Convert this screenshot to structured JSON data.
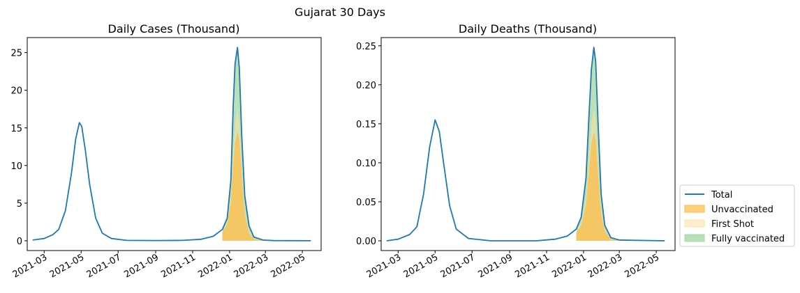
{
  "figure_title": "Gujarat 30 Days",
  "legend": {
    "placement": "outside-right-bottom",
    "entries": [
      {
        "label": "Total",
        "color": "#1f77b4",
        "kind": "line"
      },
      {
        "label": "Unvaccinated",
        "color": "#ffbb44",
        "kind": "area"
      },
      {
        "label": "First Shot",
        "color": "#fde0a6",
        "kind": "area"
      },
      {
        "label": "Fully vaccinated",
        "color": "#a8d8a8",
        "kind": "area"
      }
    ]
  },
  "chart_data": [
    {
      "type": "area",
      "title": "Daily Cases (Thousand)",
      "xlabel": "",
      "ylabel": "",
      "x_type": "date",
      "xlim": [
        "2021-02-01",
        "2022-06-01"
      ],
      "ylim": [
        -1.3,
        27
      ],
      "x_ticks": [
        "2021-03-01",
        "2021-05-01",
        "2021-07-01",
        "2021-09-01",
        "2021-11-01",
        "2022-01-01",
        "2022-03-01",
        "2022-05-01"
      ],
      "x_tick_labels": [
        "2021-03",
        "2021-05",
        "2021-07",
        "2021-09",
        "2021-11",
        "2022-01",
        "2022-03",
        "2022-05"
      ],
      "y_ticks": [
        0,
        5,
        10,
        15,
        20,
        25
      ],
      "y_tick_labels": [
        "0",
        "5",
        "10",
        "15",
        "20",
        "25"
      ],
      "grid": false,
      "series": [
        {
          "name": "Total",
          "kind": "line",
          "color": "#1f77b4",
          "points": [
            [
              "2021-02-10",
              0.1
            ],
            [
              "2021-03-01",
              0.3
            ],
            [
              "2021-03-15",
              0.8
            ],
            [
              "2021-03-25",
              1.5
            ],
            [
              "2021-04-05",
              4.0
            ],
            [
              "2021-04-15",
              9.0
            ],
            [
              "2021-04-22",
              13.5
            ],
            [
              "2021-04-28",
              15.7
            ],
            [
              "2021-05-02",
              15.2
            ],
            [
              "2021-05-08",
              12.0
            ],
            [
              "2021-05-15",
              7.5
            ],
            [
              "2021-05-25",
              3.0
            ],
            [
              "2021-06-05",
              1.0
            ],
            [
              "2021-06-20",
              0.3
            ],
            [
              "2021-07-15",
              0.05
            ],
            [
              "2021-09-01",
              0.03
            ],
            [
              "2021-10-15",
              0.05
            ],
            [
              "2021-11-15",
              0.2
            ],
            [
              "2021-12-05",
              0.6
            ],
            [
              "2021-12-20",
              1.5
            ],
            [
              "2021-12-28",
              3.0
            ],
            [
              "2022-01-03",
              8.0
            ],
            [
              "2022-01-07",
              18.0
            ],
            [
              "2022-01-10",
              23.5
            ],
            [
              "2022-01-14",
              25.7
            ],
            [
              "2022-01-17",
              23.0
            ],
            [
              "2022-01-21",
              14.0
            ],
            [
              "2022-01-26",
              6.0
            ],
            [
              "2022-02-02",
              2.0
            ],
            [
              "2022-02-10",
              0.5
            ],
            [
              "2022-02-25",
              0.1
            ],
            [
              "2022-03-15",
              0.02
            ],
            [
              "2022-05-15",
              0.0
            ]
          ]
        },
        {
          "name": "Unvaccinated",
          "kind": "area",
          "color": "#ffbb44",
          "points": [
            [
              "2021-12-20",
              1.2
            ],
            [
              "2021-12-28",
              2.2
            ],
            [
              "2022-01-03",
              5.0
            ],
            [
              "2022-01-07",
              10.0
            ],
            [
              "2022-01-10",
              13.0
            ],
            [
              "2022-01-14",
              14.5
            ],
            [
              "2022-01-17",
              13.5
            ],
            [
              "2022-01-21",
              8.5
            ],
            [
              "2022-01-26",
              3.5
            ],
            [
              "2022-02-02",
              1.0
            ],
            [
              "2022-02-10",
              0.2
            ],
            [
              "2022-02-25",
              0.03
            ],
            [
              "2022-03-15",
              0.0
            ]
          ]
        },
        {
          "name": "First Shot",
          "kind": "area",
          "color": "#fde0a6",
          "points": [
            [
              "2021-12-20",
              1.3
            ],
            [
              "2021-12-28",
              2.5
            ],
            [
              "2022-01-03",
              6.0
            ],
            [
              "2022-01-07",
              12.0
            ],
            [
              "2022-01-10",
              15.5
            ],
            [
              "2022-01-14",
              17.5
            ],
            [
              "2022-01-17",
              16.0
            ],
            [
              "2022-01-21",
              10.0
            ],
            [
              "2022-01-26",
              4.2
            ],
            [
              "2022-02-02",
              1.3
            ],
            [
              "2022-02-10",
              0.3
            ],
            [
              "2022-02-25",
              0.05
            ],
            [
              "2022-03-15",
              0.0
            ]
          ]
        },
        {
          "name": "Fully vaccinated",
          "kind": "area",
          "color": "#a8d8a8",
          "points": [
            [
              "2021-12-20",
              1.5
            ],
            [
              "2021-12-28",
              3.0
            ],
            [
              "2022-01-03",
              8.0
            ],
            [
              "2022-01-07",
              18.0
            ],
            [
              "2022-01-10",
              23.5
            ],
            [
              "2022-01-14",
              25.7
            ],
            [
              "2022-01-17",
              23.0
            ],
            [
              "2022-01-21",
              14.0
            ],
            [
              "2022-01-26",
              6.0
            ],
            [
              "2022-02-02",
              2.0
            ],
            [
              "2022-02-10",
              0.5
            ],
            [
              "2022-02-25",
              0.1
            ],
            [
              "2022-03-15",
              0.0
            ]
          ]
        }
      ]
    },
    {
      "type": "area",
      "title": "Daily Deaths (Thousand)",
      "xlabel": "",
      "ylabel": "",
      "x_type": "date",
      "xlim": [
        "2021-02-01",
        "2022-06-01"
      ],
      "ylim": [
        -0.0125,
        0.2605
      ],
      "x_ticks": [
        "2021-03-01",
        "2021-05-01",
        "2021-07-01",
        "2021-09-01",
        "2021-11-01",
        "2022-01-01",
        "2022-03-01",
        "2022-05-01"
      ],
      "x_tick_labels": [
        "2021-03",
        "2021-05",
        "2021-07",
        "2021-09",
        "2021-11",
        "2022-01",
        "2022-03",
        "2022-05"
      ],
      "y_ticks": [
        0,
        0.05,
        0.1,
        0.15,
        0.2,
        0.25
      ],
      "y_tick_labels": [
        "0.00",
        "0.05",
        "0.10",
        "0.15",
        "0.20",
        "0.25"
      ],
      "grid": false,
      "series": [
        {
          "name": "Total",
          "kind": "line",
          "color": "#1f77b4",
          "points": [
            [
              "2021-02-10",
              0.0
            ],
            [
              "2021-03-01",
              0.002
            ],
            [
              "2021-03-20",
              0.008
            ],
            [
              "2021-04-01",
              0.018
            ],
            [
              "2021-04-12",
              0.06
            ],
            [
              "2021-04-22",
              0.12
            ],
            [
              "2021-05-01",
              0.155
            ],
            [
              "2021-05-08",
              0.14
            ],
            [
              "2021-05-15",
              0.1
            ],
            [
              "2021-05-25",
              0.045
            ],
            [
              "2021-06-05",
              0.015
            ],
            [
              "2021-06-25",
              0.003
            ],
            [
              "2021-08-01",
              0.0
            ],
            [
              "2021-10-15",
              0.0
            ],
            [
              "2021-11-15",
              0.002
            ],
            [
              "2021-12-05",
              0.006
            ],
            [
              "2021-12-20",
              0.015
            ],
            [
              "2021-12-28",
              0.03
            ],
            [
              "2022-01-05",
              0.08
            ],
            [
              "2022-01-10",
              0.16
            ],
            [
              "2022-01-14",
              0.22
            ],
            [
              "2022-01-18",
              0.248
            ],
            [
              "2022-01-21",
              0.23
            ],
            [
              "2022-01-25",
              0.15
            ],
            [
              "2022-01-30",
              0.06
            ],
            [
              "2022-02-05",
              0.02
            ],
            [
              "2022-02-15",
              0.004
            ],
            [
              "2022-03-01",
              0.001
            ],
            [
              "2022-05-15",
              0.0
            ]
          ]
        },
        {
          "name": "Unvaccinated",
          "kind": "area",
          "color": "#ffbb44",
          "points": [
            [
              "2021-12-20",
              0.01
            ],
            [
              "2021-12-28",
              0.02
            ],
            [
              "2022-01-05",
              0.045
            ],
            [
              "2022-01-10",
              0.09
            ],
            [
              "2022-01-14",
              0.125
            ],
            [
              "2022-01-18",
              0.14
            ],
            [
              "2022-01-21",
              0.13
            ],
            [
              "2022-01-25",
              0.085
            ],
            [
              "2022-01-30",
              0.035
            ],
            [
              "2022-02-05",
              0.012
            ],
            [
              "2022-02-15",
              0.002
            ],
            [
              "2022-03-01",
              0.0
            ]
          ]
        },
        {
          "name": "First Shot",
          "kind": "area",
          "color": "#fde0a6",
          "points": [
            [
              "2021-12-20",
              0.012
            ],
            [
              "2021-12-28",
              0.024
            ],
            [
              "2022-01-05",
              0.055
            ],
            [
              "2022-01-10",
              0.11
            ],
            [
              "2022-01-14",
              0.15
            ],
            [
              "2022-01-18",
              0.17
            ],
            [
              "2022-01-21",
              0.158
            ],
            [
              "2022-01-25",
              0.103
            ],
            [
              "2022-01-30",
              0.042
            ],
            [
              "2022-02-05",
              0.014
            ],
            [
              "2022-02-15",
              0.003
            ],
            [
              "2022-03-01",
              0.0
            ]
          ]
        },
        {
          "name": "Fully vaccinated",
          "kind": "area",
          "color": "#a8d8a8",
          "points": [
            [
              "2021-12-20",
              0.015
            ],
            [
              "2021-12-28",
              0.03
            ],
            [
              "2022-01-05",
              0.08
            ],
            [
              "2022-01-10",
              0.16
            ],
            [
              "2022-01-14",
              0.22
            ],
            [
              "2022-01-18",
              0.248
            ],
            [
              "2022-01-21",
              0.23
            ],
            [
              "2022-01-25",
              0.15
            ],
            [
              "2022-01-30",
              0.06
            ],
            [
              "2022-02-05",
              0.02
            ],
            [
              "2022-02-15",
              0.004
            ],
            [
              "2022-03-01",
              0.0
            ]
          ]
        }
      ]
    }
  ]
}
